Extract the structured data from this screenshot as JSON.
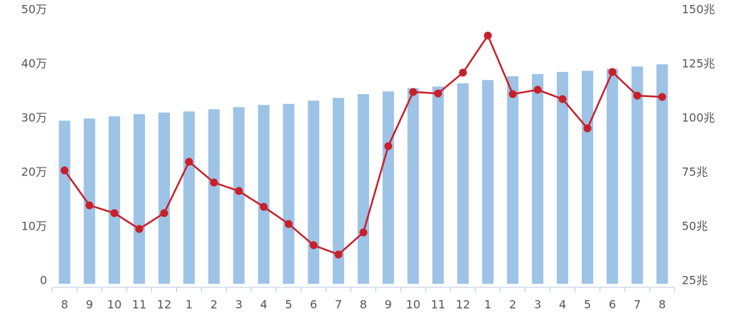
{
  "chart_data": {
    "type": "combo",
    "categories": [
      "8",
      "9",
      "10",
      "11",
      "12",
      "1",
      "2",
      "3",
      "4",
      "5",
      "6",
      "7",
      "8",
      "9",
      "10",
      "11",
      "12",
      "1",
      "2",
      "3",
      "4",
      "5",
      "6",
      "7",
      "8"
    ],
    "series": [
      {
        "type": "bar",
        "color": "#9dc3e6",
        "values": [
          30.1,
          30.5,
          30.9,
          31.3,
          31.6,
          31.8,
          32.2,
          32.6,
          33.0,
          33.2,
          33.8,
          34.3,
          35.0,
          35.5,
          36.1,
          36.4,
          37.0,
          37.6,
          38.3,
          38.7,
          39.1,
          39.3,
          39.7,
          40.1,
          40.5
        ]
      },
      {
        "type": "line",
        "color": "#c8202a",
        "axis": "y2",
        "values": [
          77.3,
          61.2,
          57.6,
          50.3,
          57.6,
          81.3,
          71.7,
          67.8,
          60.5,
          52.6,
          42.8,
          38.5,
          48.7,
          88.5,
          113.5,
          112.8,
          122.4,
          139.5,
          112.5,
          114.5,
          110.2,
          96.7,
          122.7,
          111.8,
          111.2
        ]
      }
    ],
    "ylim": [
      0,
      50
    ],
    "yticks": [
      0,
      {
        "value": 10,
        "label": "10万"
      },
      {
        "value": 20,
        "label": "20万"
      },
      {
        "value": 30,
        "label": "30万"
      },
      {
        "value": 40,
        "label": "40万"
      },
      {
        "value": 50,
        "label": "50万"
      }
    ],
    "y2lim": [
      25,
      150
    ],
    "y2ticks": [
      {
        "value": 25,
        "label": "25兆"
      },
      {
        "value": 50,
        "label": "50兆"
      },
      {
        "value": 75,
        "label": "75兆"
      },
      {
        "value": 100,
        "label": "100兆"
      },
      {
        "value": 125,
        "label": "125兆"
      },
      {
        "value": 150,
        "label": "150兆"
      }
    ]
  }
}
